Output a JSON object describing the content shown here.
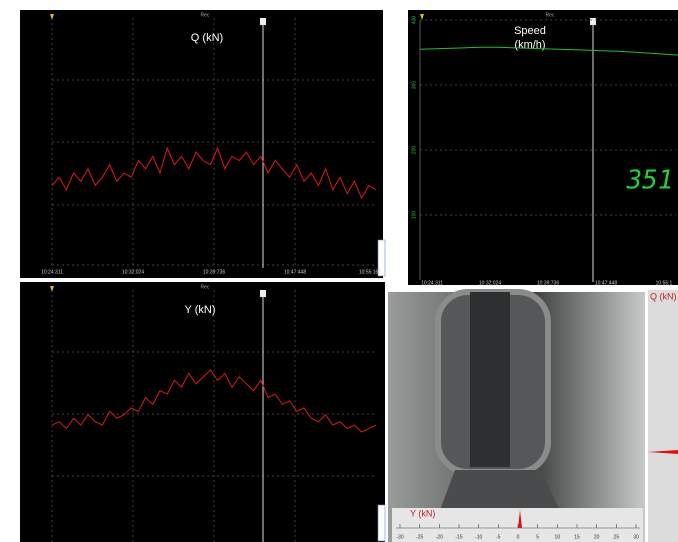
{
  "panels": {
    "q": {
      "title": "Q (kN)",
      "rec": "Rec",
      "xticks": [
        "10:24:311",
        "10:32:024",
        "10:39:736",
        "10:47:448",
        "10:55:161"
      ],
      "trace": [
        48,
        50,
        47,
        51,
        49,
        52,
        48,
        50,
        53,
        49,
        51,
        50,
        54,
        52,
        55,
        51,
        57,
        53,
        55,
        52,
        56,
        54,
        53,
        57,
        52,
        55,
        54,
        56,
        53,
        55,
        51,
        54,
        52,
        50,
        53,
        49,
        51,
        48,
        52,
        47,
        50,
        46,
        49,
        45,
        48,
        47
      ]
    },
    "speed": {
      "title": "Speed",
      "unit": "(km/h)",
      "rec": "Rec",
      "xticks": [
        "10:24:311",
        "10:32:024",
        "10:39:736",
        "10:47:448",
        "10:55:1"
      ],
      "ylim": [
        0,
        400
      ],
      "yticks": [
        400,
        300,
        200,
        100
      ],
      "values": [
        355,
        356,
        357,
        358,
        358,
        357,
        356,
        355,
        354,
        353,
        352,
        350,
        348,
        346
      ],
      "readout": "351"
    },
    "y": {
      "title": "Y (kN)",
      "rec": "Rec",
      "trace": [
        30,
        31,
        29,
        32,
        30,
        33,
        31,
        30,
        34,
        32,
        33,
        35,
        34,
        38,
        36,
        40,
        39,
        43,
        41,
        45,
        42,
        44,
        46,
        43,
        45,
        41,
        44,
        42,
        40,
        43,
        38,
        39,
        36,
        37,
        34,
        35,
        32,
        31,
        33,
        30,
        31,
        29,
        30,
        28,
        29,
        30
      ]
    }
  },
  "camera": {
    "q_label": "Q (kN)",
    "y_label": "Y (kN)",
    "y_scale": [
      -30,
      -25,
      -20,
      -15,
      -10,
      -5,
      0,
      5,
      10,
      15,
      20,
      25,
      30
    ]
  }
}
